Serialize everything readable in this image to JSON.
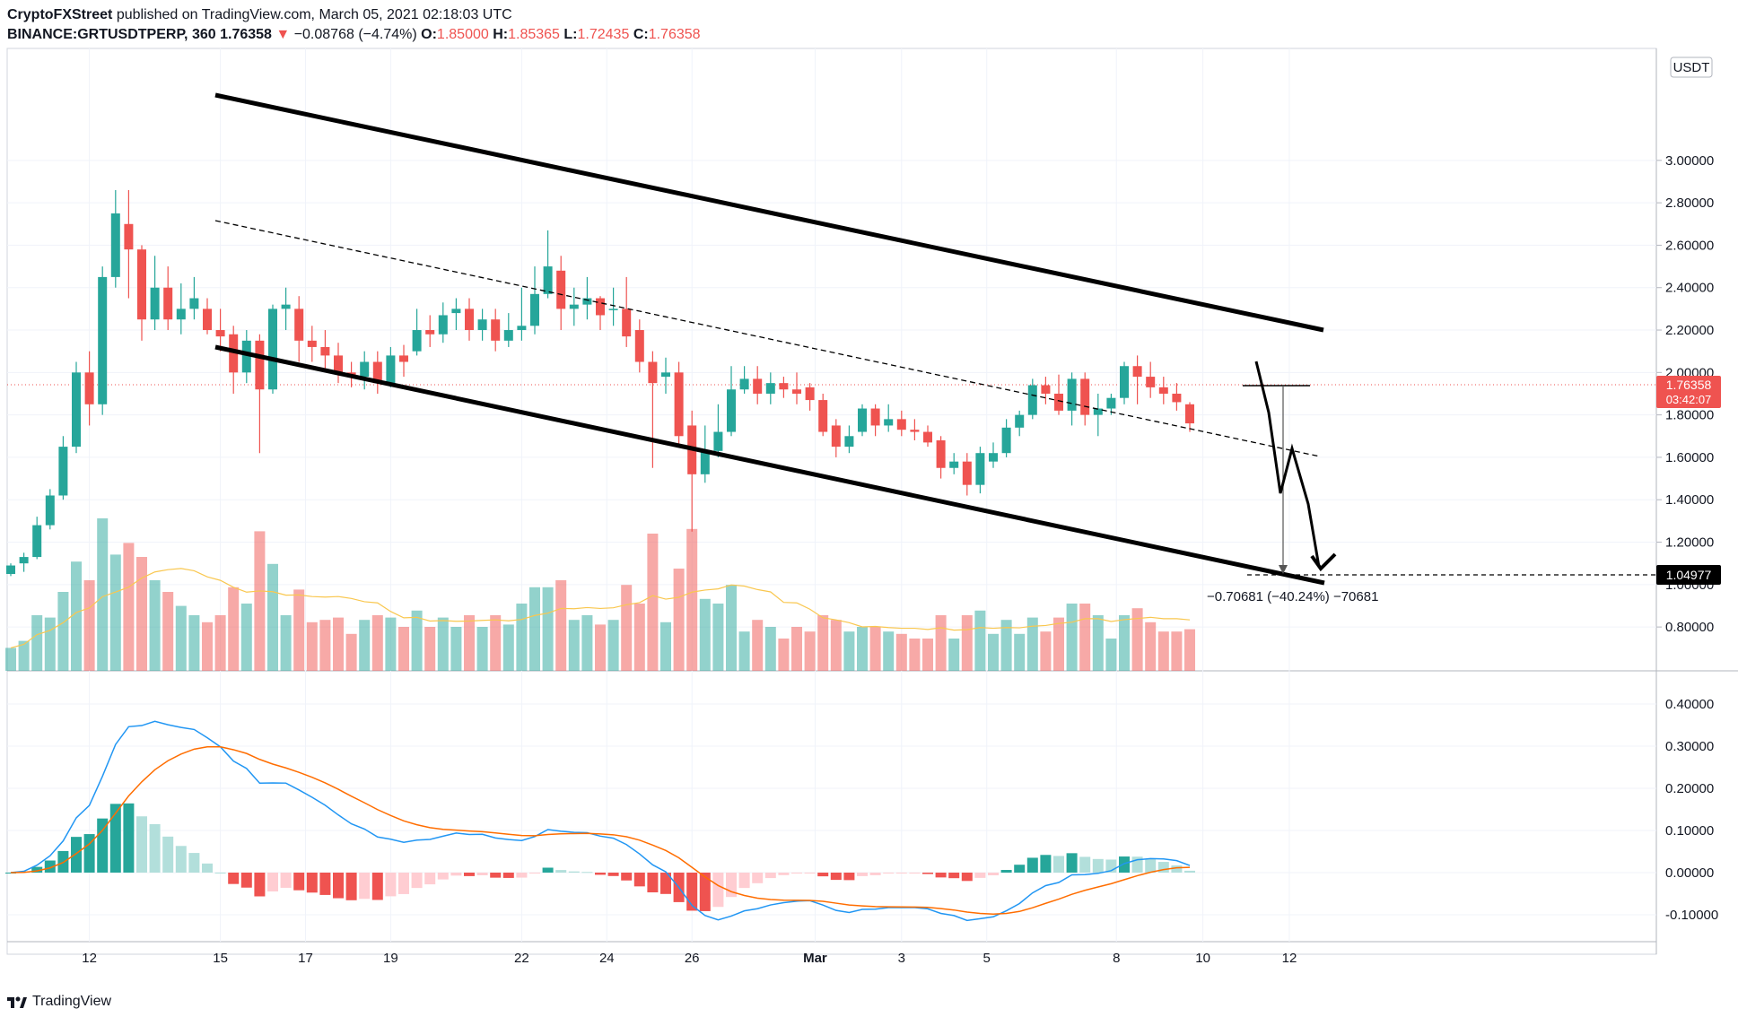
{
  "header": {
    "publisher": "CryptoFXStreet",
    "published_text": "published on TradingView.com, March 05, 2021 02:18:03 UTC",
    "symbol": "BINANCE:GRTUSDTPERP, 360",
    "last": "1.76358",
    "change": "−0.08768 (−4.74%)",
    "o_label": "O:",
    "o": "1.85000",
    "h_label": "H:",
    "h": "1.85365",
    "l_label": "L:",
    "l": "1.72435",
    "c_label": "C:",
    "c": "1.76358"
  },
  "footer": {
    "brand": "TradingView"
  },
  "colors": {
    "up": "#26a69a",
    "down": "#ef5350",
    "macd": "#2196f3",
    "signal": "#ff6d00",
    "vol_ma": "#f9c74f"
  },
  "chart_data": {
    "type": "candlestick",
    "y_axis_unit": "USDT",
    "y_ticks": [
      "3.00000",
      "2.80000",
      "2.60000",
      "2.40000",
      "2.20000",
      "2.00000",
      "1.80000",
      "1.60000",
      "1.40000",
      "1.20000",
      "1.00000",
      "0.80000"
    ],
    "x_ticks": [
      "12",
      "15",
      "17",
      "19",
      "22",
      "24",
      "26",
      "Mar",
      "3",
      "5",
      "8",
      "10",
      "12"
    ],
    "price_label": "1.76358",
    "countdown_label": "03:42:07",
    "target_label": "1.04977",
    "measure_label": "−0.70681 (−40.24%) −70681",
    "macd_ticks": [
      "0.40000",
      "0.30000",
      "0.20000",
      "0.10000",
      "0.00000",
      "-0.10000"
    ],
    "candles": [
      [
        1.05,
        1.09,
        1.1,
        1.04
      ],
      [
        1.1,
        1.13,
        1.15,
        1.06
      ],
      [
        1.13,
        1.28,
        1.32,
        1.12
      ],
      [
        1.28,
        1.42,
        1.45,
        1.26
      ],
      [
        1.42,
        1.65,
        1.7,
        1.4
      ],
      [
        1.65,
        2.0,
        2.05,
        1.62
      ],
      [
        2.0,
        1.85,
        2.1,
        1.75
      ],
      [
        1.85,
        2.45,
        2.5,
        1.8
      ],
      [
        2.45,
        2.75,
        2.86,
        2.4
      ],
      [
        2.7,
        2.58,
        2.86,
        2.35
      ],
      [
        2.58,
        2.25,
        2.6,
        2.15
      ],
      [
        2.25,
        2.4,
        2.55,
        2.2
      ],
      [
        2.4,
        2.25,
        2.5,
        2.2
      ],
      [
        2.25,
        2.3,
        2.42,
        2.18
      ],
      [
        2.3,
        2.35,
        2.45,
        2.25
      ],
      [
        2.3,
        2.2,
        2.35,
        2.18
      ],
      [
        2.2,
        2.17,
        2.3,
        2.1
      ],
      [
        2.18,
        2.0,
        2.22,
        1.9
      ],
      [
        2.0,
        2.15,
        2.2,
        1.95
      ],
      [
        2.15,
        1.92,
        2.18,
        1.62
      ],
      [
        1.92,
        2.3,
        2.32,
        1.9
      ],
      [
        2.3,
        2.32,
        2.4,
        2.2
      ],
      [
        2.3,
        2.15,
        2.36,
        2.05
      ],
      [
        2.15,
        2.12,
        2.22,
        2.05
      ],
      [
        2.12,
        2.08,
        2.2,
        2.02
      ],
      [
        2.08,
        2.0,
        2.14,
        1.95
      ],
      [
        2.0,
        1.98,
        2.05,
        1.93
      ],
      [
        1.98,
        2.05,
        2.1,
        1.92
      ],
      [
        2.05,
        1.95,
        2.1,
        1.9
      ],
      [
        1.95,
        2.08,
        2.12,
        1.93
      ],
      [
        2.08,
        2.05,
        2.13,
        1.98
      ],
      [
        2.1,
        2.2,
        2.3,
        2.08
      ],
      [
        2.2,
        2.18,
        2.27,
        2.12
      ],
      [
        2.18,
        2.27,
        2.33,
        2.14
      ],
      [
        2.28,
        2.3,
        2.35,
        2.2
      ],
      [
        2.3,
        2.2,
        2.35,
        2.15
      ],
      [
        2.2,
        2.25,
        2.3,
        2.15
      ],
      [
        2.25,
        2.15,
        2.3,
        2.1
      ],
      [
        2.15,
        2.2,
        2.28,
        2.12
      ],
      [
        2.2,
        2.22,
        2.4,
        2.15
      ],
      [
        2.22,
        2.37,
        2.5,
        2.18
      ],
      [
        2.37,
        2.5,
        2.67,
        2.35
      ],
      [
        2.48,
        2.3,
        2.55,
        2.2
      ],
      [
        2.3,
        2.32,
        2.4,
        2.22
      ],
      [
        2.32,
        2.35,
        2.45,
        2.25
      ],
      [
        2.35,
        2.27,
        2.36,
        2.2
      ],
      [
        2.3,
        2.3,
        2.4,
        2.22
      ],
      [
        2.3,
        2.17,
        2.45,
        2.12
      ],
      [
        2.2,
        2.05,
        2.25,
        2.0
      ],
      [
        2.05,
        1.95,
        2.1,
        1.55
      ],
      [
        1.98,
        2.0,
        2.07,
        1.9
      ],
      [
        2.0,
        1.7,
        2.05,
        1.65
      ],
      [
        1.75,
        1.52,
        1.82,
        1.25
      ],
      [
        1.52,
        1.63,
        1.75,
        1.48
      ],
      [
        1.63,
        1.72,
        1.85,
        1.6
      ],
      [
        1.72,
        1.92,
        2.03,
        1.7
      ],
      [
        1.92,
        1.97,
        2.03,
        1.9
      ],
      [
        1.97,
        1.9,
        2.03,
        1.85
      ],
      [
        1.9,
        1.95,
        2.0,
        1.85
      ],
      [
        1.95,
        1.92,
        1.98,
        1.88
      ],
      [
        1.92,
        1.9,
        2.0,
        1.85
      ],
      [
        1.93,
        1.87,
        1.95,
        1.82
      ],
      [
        1.87,
        1.72,
        1.9,
        1.7
      ],
      [
        1.75,
        1.65,
        1.78,
        1.6
      ],
      [
        1.65,
        1.7,
        1.75,
        1.62
      ],
      [
        1.72,
        1.83,
        1.85,
        1.7
      ],
      [
        1.83,
        1.75,
        1.85,
        1.7
      ],
      [
        1.75,
        1.78,
        1.85,
        1.72
      ],
      [
        1.78,
        1.73,
        1.82,
        1.7
      ],
      [
        1.73,
        1.72,
        1.78,
        1.68
      ],
      [
        1.72,
        1.67,
        1.75,
        1.65
      ],
      [
        1.68,
        1.55,
        1.7,
        1.5
      ],
      [
        1.55,
        1.58,
        1.62,
        1.52
      ],
      [
        1.58,
        1.47,
        1.62,
        1.42
      ],
      [
        1.47,
        1.62,
        1.65,
        1.43
      ],
      [
        1.58,
        1.62,
        1.67,
        1.55
      ],
      [
        1.62,
        1.74,
        1.78,
        1.6
      ],
      [
        1.74,
        1.8,
        1.82,
        1.7
      ],
      [
        1.8,
        1.94,
        1.97,
        1.78
      ],
      [
        1.94,
        1.9,
        1.98,
        1.85
      ],
      [
        1.9,
        1.82,
        1.99,
        1.8
      ],
      [
        1.82,
        1.97,
        2.0,
        1.75
      ],
      [
        1.97,
        1.8,
        2.0,
        1.75
      ],
      [
        1.8,
        1.83,
        1.9,
        1.7
      ],
      [
        1.83,
        1.88,
        1.9,
        1.8
      ],
      [
        1.88,
        2.03,
        2.05,
        1.85
      ],
      [
        2.03,
        1.98,
        2.08,
        1.85
      ],
      [
        1.98,
        1.93,
        2.05,
        1.88
      ],
      [
        1.93,
        1.9,
        1.98,
        1.85
      ],
      [
        1.9,
        1.86,
        1.95,
        1.82
      ],
      [
        1.85,
        1.76,
        1.86,
        1.72
      ]
    ]
  }
}
